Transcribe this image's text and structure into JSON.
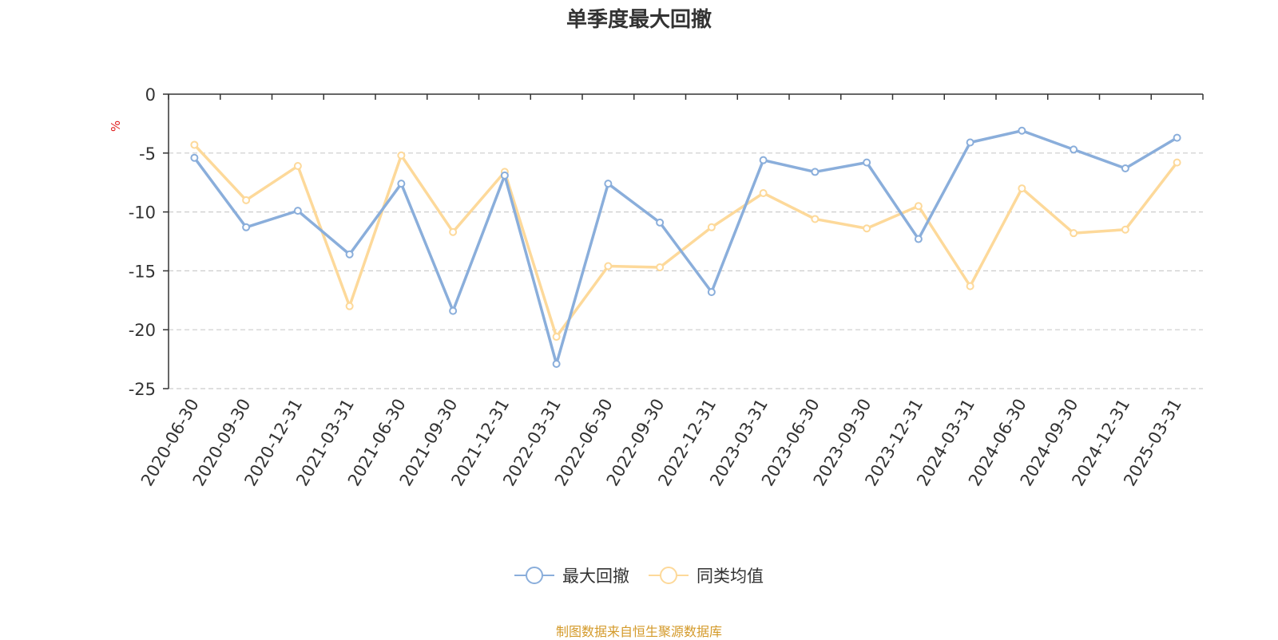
{
  "title": "单季度最大回撤",
  "source_note": "制图数据来自恒生聚源数据库",
  "colors": {
    "series1": "#8aaedb",
    "series2": "#fdd99a",
    "unit": "#e02020",
    "source": "#d49a2a"
  },
  "chart_data": {
    "type": "line",
    "title": "单季度最大回撤",
    "ylabel": "%",
    "ylim": [
      -25,
      0
    ],
    "yticks": [
      "0",
      "-5",
      "-10",
      "-15",
      "-20",
      "-25"
    ],
    "grid": true,
    "legend_position": "bottom",
    "categories": [
      "2020-06-30",
      "2020-09-30",
      "2020-12-31",
      "2021-03-31",
      "2021-06-30",
      "2021-09-30",
      "2021-12-31",
      "2022-03-31",
      "2022-06-30",
      "2022-09-30",
      "2022-12-31",
      "2023-03-31",
      "2023-06-30",
      "2023-09-30",
      "2023-12-31",
      "2024-03-31",
      "2024-06-30",
      "2024-09-30",
      "2024-12-31",
      "2025-03-31"
    ],
    "series": [
      {
        "name": "最大回撤",
        "values": [
          -5.4,
          -11.3,
          -9.9,
          -13.6,
          -7.6,
          -18.4,
          -6.9,
          -22.9,
          -7.6,
          -10.9,
          -16.8,
          -5.6,
          -6.6,
          -5.8,
          -12.3,
          -4.1,
          -3.1,
          -4.7,
          -6.3,
          -3.7
        ]
      },
      {
        "name": "同类均值",
        "values": [
          -4.3,
          -9.0,
          -6.1,
          -18.0,
          -5.2,
          -11.7,
          -6.6,
          -20.6,
          -14.6,
          -14.7,
          -11.3,
          -8.4,
          -10.6,
          -11.4,
          -9.5,
          -16.3,
          -8.0,
          -11.8,
          -11.5,
          -5.8
        ]
      }
    ]
  }
}
